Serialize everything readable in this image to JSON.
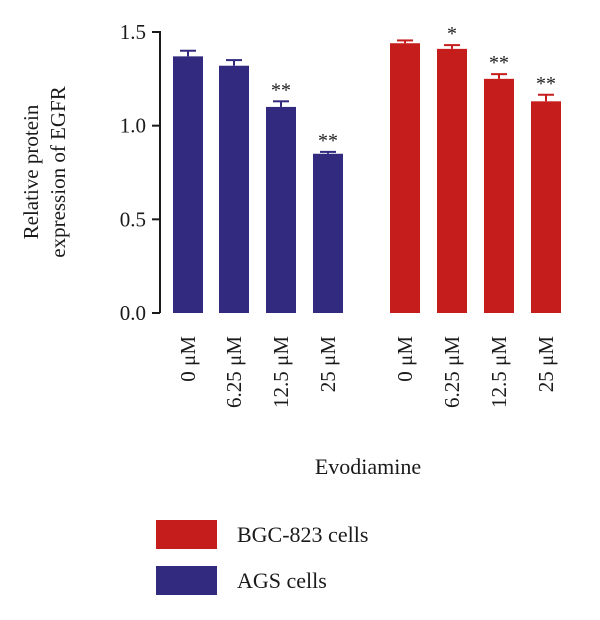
{
  "chart_data": {
    "type": "bar",
    "ylabel": [
      "Relative protein",
      "expression of EGFR"
    ],
    "xlabel": "Evodiamine",
    "ylim": [
      0,
      1.5
    ],
    "yticks": [
      "0.0",
      "0.5",
      "1.0",
      "1.5"
    ],
    "categories": [
      "0 μM",
      "6.25 μM",
      "12.5 μM",
      "25 μM"
    ],
    "grid": false,
    "legend_position": "bottom-center",
    "groups": [
      {
        "name": "AGS cells",
        "color": "#322a7e",
        "values": [
          1.37,
          1.32,
          1.1,
          0.85
        ],
        "errors": [
          0.03,
          0.03,
          0.03,
          0.01
        ],
        "significance": [
          "",
          "",
          "**",
          "**"
        ]
      },
      {
        "name": "BGC-823 cells",
        "color": "#c51d1c",
        "values": [
          1.44,
          1.41,
          1.25,
          1.13
        ],
        "errors": [
          0.015,
          0.02,
          0.025,
          0.035
        ],
        "significance": [
          "",
          "*",
          "**",
          "**"
        ]
      }
    ],
    "legend": [
      {
        "label": "BGC-823 cells",
        "color": "#c51d1c"
      },
      {
        "label": "AGS cells",
        "color": "#322a7e"
      }
    ]
  }
}
